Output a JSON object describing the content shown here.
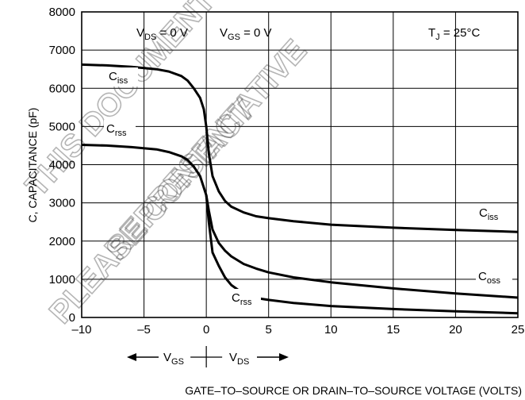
{
  "chart_data": {
    "type": "line",
    "ylabel": "C, CAPACITANCE (pF)",
    "xlabel": "GATE–TO–SOURCE OR DRAIN–TO–SOURCE VOLTAGE (VOLTS)",
    "xlim": [
      -10,
      25
    ],
    "ylim": [
      0,
      8000
    ],
    "x_ticks": [
      -10,
      -5,
      0,
      5,
      10,
      15,
      20,
      25
    ],
    "x_tick_labels": [
      "–10",
      "–5",
      "0",
      "5",
      "10",
      "15",
      "20",
      "25"
    ],
    "y_ticks": [
      0,
      1000,
      2000,
      3000,
      4000,
      5000,
      6000,
      7000,
      8000
    ],
    "y_tick_labels": [
      "0",
      "1000",
      "2000",
      "3000",
      "4000",
      "5000",
      "6000",
      "7000",
      "8000"
    ],
    "grid": true,
    "conditions": {
      "vds_left": {
        "base": "V",
        "sub": "DS",
        "rest": " = 0 V"
      },
      "vgs_right": {
        "base": "V",
        "sub": "GS",
        "rest": " = 0 V"
      },
      "tj": {
        "base": "T",
        "sub": "J",
        "rest": " =  25°C"
      }
    },
    "bottom_indicator": {
      "left": {
        "base": "V",
        "sub": "GS"
      },
      "right": {
        "base": "V",
        "sub": "DS"
      }
    },
    "series": [
      {
        "name": "Ciss",
        "x": [
          -10,
          -8,
          -6,
          -4,
          -3,
          -2,
          -1.5,
          -1,
          -0.5,
          -0.2,
          0,
          0.2,
          0.5,
          1,
          1.5,
          2,
          3,
          4,
          5,
          7,
          10,
          15,
          20,
          25
        ],
        "y": [
          6620,
          6600,
          6560,
          6500,
          6440,
          6320,
          6200,
          6000,
          5750,
          5450,
          5000,
          4300,
          3700,
          3300,
          3050,
          2900,
          2750,
          2650,
          2600,
          2520,
          2430,
          2350,
          2290,
          2240
        ]
      },
      {
        "name": "Crss",
        "x": [
          -10,
          -8,
          -6,
          -4,
          -3,
          -2,
          -1.5,
          -1,
          -0.5,
          -0.2,
          0,
          0.2,
          0.5,
          1,
          1.5,
          2,
          3,
          4,
          5,
          7,
          10,
          15,
          20,
          25
        ],
        "y": [
          4520,
          4500,
          4460,
          4400,
          4330,
          4220,
          4120,
          3950,
          3700,
          3400,
          3200,
          2500,
          1700,
          1350,
          1050,
          850,
          620,
          510,
          460,
          380,
          300,
          220,
          160,
          110
        ]
      },
      {
        "name": "Coss",
        "x": [
          0,
          0.2,
          0.5,
          1,
          1.5,
          2,
          3,
          4,
          5,
          7,
          10,
          15,
          20,
          25
        ],
        "y": [
          3200,
          2800,
          2300,
          1950,
          1750,
          1600,
          1400,
          1280,
          1180,
          1050,
          920,
          760,
          630,
          520
        ]
      }
    ],
    "annotations": [
      {
        "base": "C",
        "sub": "iss"
      },
      {
        "base": "C",
        "sub": "rss"
      },
      {
        "base": "C",
        "sub": "iss"
      },
      {
        "base": "C",
        "sub": "oss"
      },
      {
        "base": "C",
        "sub": "rss"
      }
    ]
  },
  "watermark": [
    "THIS DOCUMENT CONTAINS",
    "PLEASE CONTACT",
    "REPRESENTATIVE"
  ]
}
